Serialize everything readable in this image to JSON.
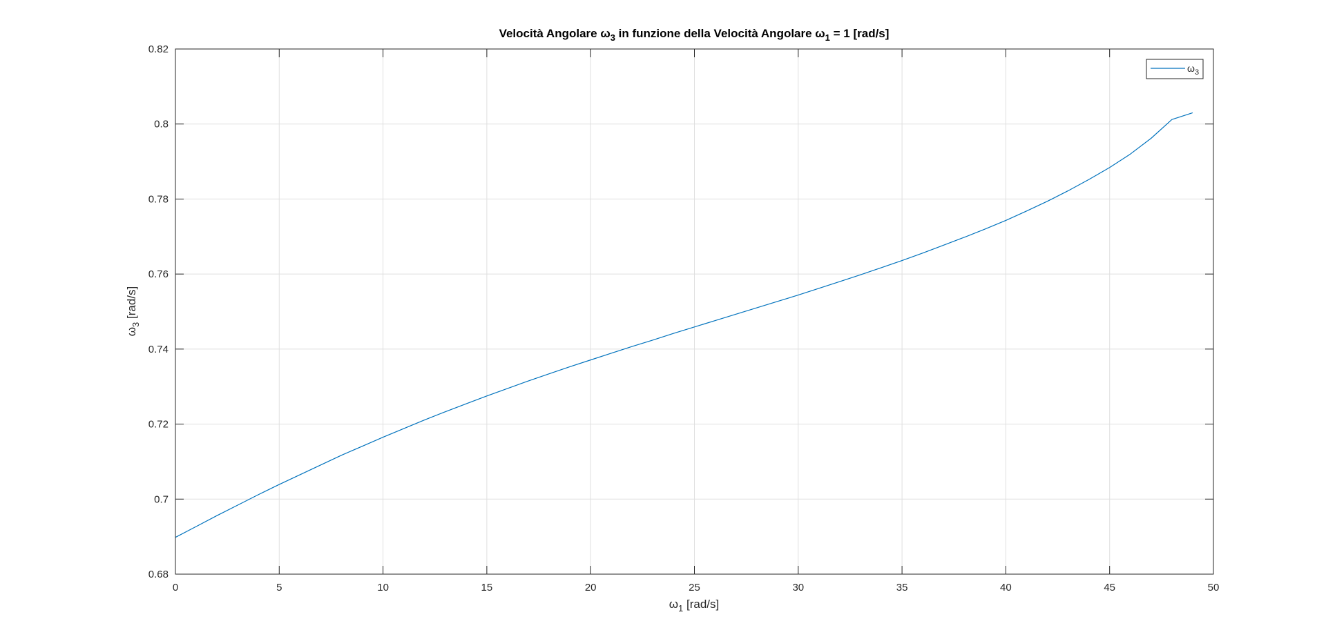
{
  "chart_data": {
    "type": "line",
    "title": {
      "part1": "Velocità Angolare ω",
      "sub1": "3",
      "part2": " in funzione della Velocità Angolare ω",
      "sub2": "1",
      "part3": " = 1 [rad/s]"
    },
    "xlabel": {
      "main": "ω",
      "sub": "1",
      "rest": " [rad/s]"
    },
    "ylabel": {
      "main": "ω",
      "sub": "3",
      "rest": " [rad/s]"
    },
    "xlim": [
      0,
      50
    ],
    "ylim": [
      0.68,
      0.82
    ],
    "xticks": [
      0,
      5,
      10,
      15,
      20,
      25,
      30,
      35,
      40,
      45,
      50
    ],
    "xtick_labels": [
      "0",
      "5",
      "10",
      "15",
      "20",
      "25",
      "30",
      "35",
      "40",
      "45",
      "50"
    ],
    "yticks": [
      0.68,
      0.7,
      0.72,
      0.74,
      0.76,
      0.78,
      0.8,
      0.82
    ],
    "ytick_labels": [
      "0.68",
      "0.7",
      "0.72",
      "0.74",
      "0.76",
      "0.78",
      "0.8",
      "0.82"
    ],
    "grid": true,
    "legend_position": "top-right",
    "series": [
      {
        "name": {
          "main": "ω",
          "sub": "3"
        },
        "color": "#0072BD",
        "x": [
          0,
          1,
          2,
          3,
          4,
          5,
          6,
          7,
          8,
          9,
          10,
          11,
          12,
          13,
          14,
          15,
          16,
          17,
          18,
          19,
          20,
          21,
          22,
          23,
          24,
          25,
          26,
          27,
          28,
          29,
          30,
          31,
          32,
          33,
          34,
          35,
          36,
          37,
          38,
          39,
          40,
          41,
          42,
          43,
          44,
          45,
          46,
          47,
          48,
          49
        ],
        "y": [
          0.6898,
          0.6927,
          0.6956,
          0.6984,
          0.7012,
          0.7039,
          0.7065,
          0.7091,
          0.7117,
          0.7141,
          0.7165,
          0.7188,
          0.7211,
          0.7233,
          0.7254,
          0.7275,
          0.7295,
          0.7315,
          0.7334,
          0.7353,
          0.7371,
          0.7389,
          0.7407,
          0.7424,
          0.7442,
          0.7459,
          0.7476,
          0.7493,
          0.751,
          0.7527,
          0.7544,
          0.7562,
          0.758,
          0.7598,
          0.7617,
          0.7636,
          0.7656,
          0.7677,
          0.7698,
          0.772,
          0.7743,
          0.7768,
          0.7794,
          0.7822,
          0.7852,
          0.7884,
          0.792,
          0.7962,
          0.8012,
          0.803
        ]
      }
    ]
  }
}
